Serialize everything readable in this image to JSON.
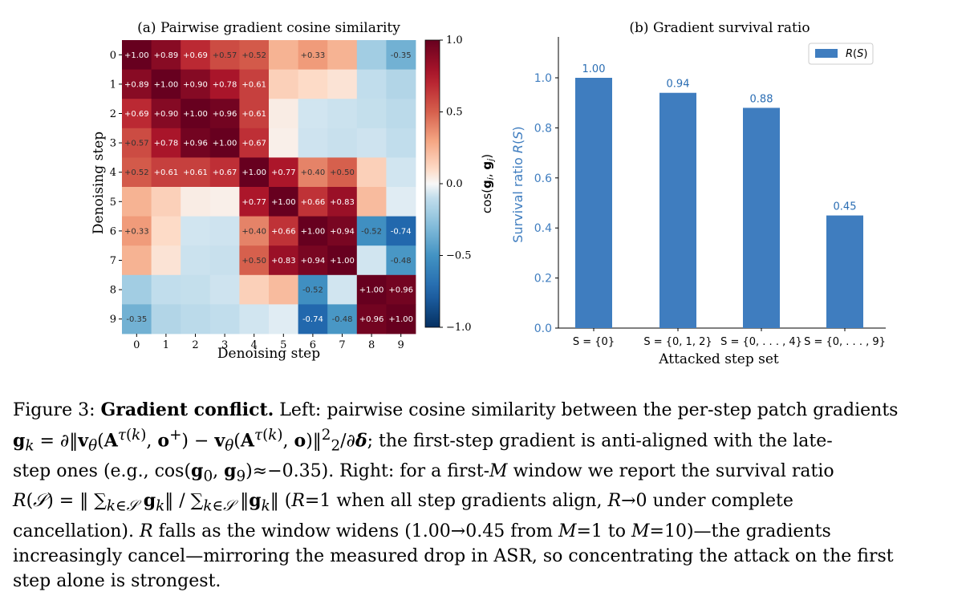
{
  "chart_data": [
    {
      "type": "heatmap",
      "title": "(a) Pairwise gradient cosine similarity",
      "xlabel": "Denoising step",
      "ylabel": "Denoising step",
      "x_ticks": [
        "0",
        "1",
        "2",
        "3",
        "4",
        "5",
        "6",
        "7",
        "8",
        "9"
      ],
      "y_ticks": [
        "0",
        "1",
        "2",
        "3",
        "4",
        "5",
        "6",
        "7",
        "8",
        "9"
      ],
      "colorbar_label": "cos(g_i, g_j)",
      "colorbar_ticks": [
        "1.0",
        "0.5",
        "0.0",
        "−0.5",
        "−1.0"
      ],
      "vmin": -1.0,
      "vmax": 1.0,
      "colormap": "RdBu_r",
      "values": [
        [
          1.0,
          0.89,
          0.69,
          0.57,
          0.52,
          0.25,
          0.33,
          0.25,
          -0.2,
          -0.35
        ],
        [
          0.89,
          1.0,
          0.9,
          0.78,
          0.61,
          0.14,
          0.1,
          0.07,
          -0.1,
          -0.15
        ],
        [
          0.69,
          0.9,
          1.0,
          0.96,
          0.61,
          0.04,
          -0.05,
          -0.07,
          -0.09,
          -0.12
        ],
        [
          0.57,
          0.78,
          0.96,
          1.0,
          0.67,
          0.03,
          -0.06,
          -0.08,
          -0.06,
          -0.1
        ],
        [
          0.52,
          0.61,
          0.61,
          0.67,
          1.0,
          0.77,
          0.4,
          0.5,
          0.14,
          -0.05
        ],
        [
          0.25,
          0.14,
          0.04,
          0.03,
          0.77,
          1.0,
          0.66,
          0.83,
          0.22,
          -0.03
        ],
        [
          0.33,
          0.1,
          -0.05,
          -0.06,
          0.4,
          0.66,
          1.0,
          0.94,
          -0.52,
          -0.74
        ],
        [
          0.25,
          0.07,
          -0.07,
          -0.08,
          0.5,
          0.83,
          0.94,
          1.0,
          -0.05,
          -0.48
        ],
        [
          -0.2,
          -0.1,
          -0.09,
          -0.06,
          0.14,
          0.22,
          -0.52,
          -0.05,
          1.0,
          0.96
        ],
        [
          -0.35,
          -0.15,
          -0.12,
          -0.1,
          -0.05,
          -0.03,
          -0.74,
          -0.48,
          0.96,
          1.0
        ]
      ],
      "annotations": [
        [
          "+1.00",
          "+0.89",
          "+0.69",
          "+0.57",
          "+0.52",
          "",
          "+0.33",
          "",
          "",
          "-0.35"
        ],
        [
          "+0.89",
          "+1.00",
          "+0.90",
          "+0.78",
          "+0.61",
          "",
          "",
          "",
          "",
          ""
        ],
        [
          "+0.69",
          "+0.90",
          "+1.00",
          "+0.96",
          "+0.61",
          "",
          "",
          "",
          "",
          ""
        ],
        [
          "+0.57",
          "+0.78",
          "+0.96",
          "+1.00",
          "+0.67",
          "",
          "",
          "",
          "",
          ""
        ],
        [
          "+0.52",
          "+0.61",
          "+0.61",
          "+0.67",
          "+1.00",
          "+0.77",
          "+0.40",
          "+0.50",
          "",
          ""
        ],
        [
          "",
          "",
          "",
          "",
          "+0.77",
          "+1.00",
          "+0.66",
          "+0.83",
          "",
          ""
        ],
        [
          "+0.33",
          "",
          "",
          "",
          "+0.40",
          "+0.66",
          "+1.00",
          "+0.94",
          "-0.52",
          "-0.74"
        ],
        [
          "",
          "",
          "",
          "",
          "+0.50",
          "+0.83",
          "+0.94",
          "+1.00",
          "",
          "-0.48"
        ],
        [
          "",
          "",
          "",
          "",
          "",
          "",
          "-0.52",
          "",
          "+1.00",
          "+0.96"
        ],
        [
          "-0.35",
          "",
          "",
          "",
          "",
          "",
          "-0.74",
          "-0.48",
          "+0.96",
          "+1.00"
        ]
      ]
    },
    {
      "type": "bar",
      "title": "(b) Gradient survival ratio",
      "categories": [
        "S = {0}",
        "S = {0, 1, 2}",
        "S = {0, . . . , 4}",
        "S = {0, . . . , 9}"
      ],
      "series": [
        {
          "name": "R(S)",
          "values": [
            1.0,
            0.94,
            0.88,
            0.45
          ],
          "color": "#3f7dbf"
        }
      ],
      "data_labels": [
        "1.00",
        "0.94",
        "0.88",
        "0.45"
      ],
      "xlabel": "Attacked step set",
      "ylabel": "Survival ratio R(S)",
      "ylim": [
        0,
        1.15
      ],
      "y_ticks": [
        "0.0",
        "0.2",
        "0.4",
        "0.6",
        "0.8",
        "1.0"
      ],
      "legend": "top-right",
      "grid": false
    }
  ],
  "caption": {
    "label": "Figure 3:",
    "bold": "Gradient conflict.",
    "line1": "Left: pairwise cosine similarity between the per-step patch gradients",
    "line2": "g_k = ∂‖v_θ(A^τ(k), o⁺) − v_θ(A^τ(k), o)‖²₂/∂δ; the first-step gradient is anti-aligned with the late-",
    "line3": "step ones (e.g., cos(g₀, g₉)≈−0.35). Right: for a first-M window we report the survival ratio",
    "line4": "R(S) = ‖ Σ_{k∈S} g_k ‖ / Σ_{k∈S} ‖g_k‖ (R=1 when all step gradients align, R→0 under complete",
    "line5": "cancellation). R falls as the window widens (1.00→0.45 from M=1 to M=10)—the gradients",
    "line6": "increasingly cancel—mirroring the measured drop in ASR, so concentrating the attack on the first",
    "line7": "step alone is strongest."
  }
}
